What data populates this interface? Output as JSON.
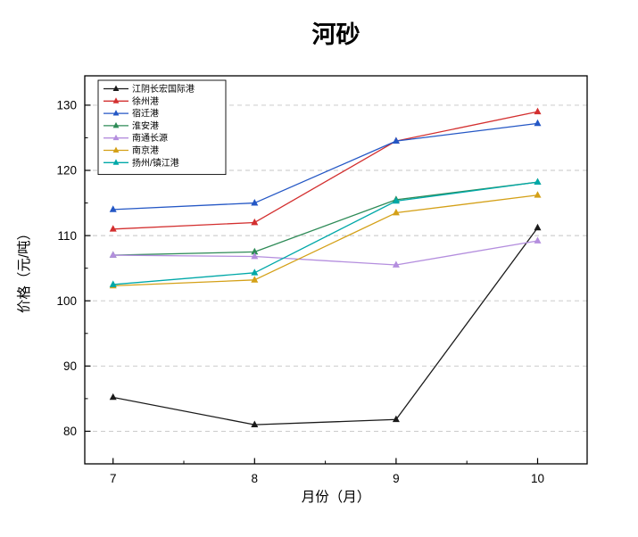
{
  "chart_data": {
    "type": "line",
    "title": "河砂",
    "xlabel": "月份（月）",
    "ylabel": "价格（元/吨）",
    "x": [
      7,
      8,
      9,
      10
    ],
    "xticks": [
      7,
      8,
      9,
      10
    ],
    "yticks": [
      80,
      90,
      100,
      110,
      120,
      130
    ],
    "xlim": [
      6.8,
      10.35
    ],
    "ylim": [
      75,
      134.5
    ],
    "grid": "horizontal-dashed",
    "legend_position": "top-left",
    "marker": "triangle",
    "frame_color": "#000000",
    "grid_color": "#c4c4c4",
    "series": [
      {
        "name": "江阴长宏国际港",
        "color": "#1a1a1a",
        "values": [
          85.2,
          81.0,
          81.8,
          111.2
        ]
      },
      {
        "name": "徐州港",
        "color": "#d32f2f",
        "values": [
          111.0,
          112.0,
          124.5,
          129.0
        ]
      },
      {
        "name": "宿迁港",
        "color": "#2457c5",
        "values": [
          114.0,
          115.0,
          124.5,
          127.2
        ]
      },
      {
        "name": "淮安港",
        "color": "#2e8b57",
        "values": [
          107.0,
          107.5,
          115.5,
          118.2
        ]
      },
      {
        "name": "南通长源",
        "color": "#b48ede",
        "values": [
          107.0,
          106.8,
          105.5,
          109.2
        ]
      },
      {
        "name": "南京港",
        "color": "#d4a017",
        "values": [
          102.3,
          103.2,
          113.5,
          116.2
        ]
      },
      {
        "name": "扬州/镇江港",
        "color": "#00a8a8",
        "values": [
          102.5,
          104.3,
          115.3,
          118.2
        ]
      }
    ]
  }
}
